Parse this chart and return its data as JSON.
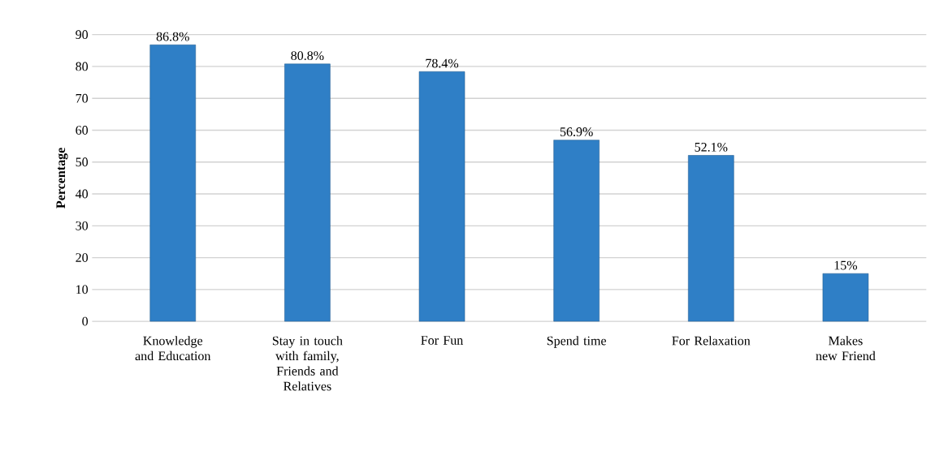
{
  "chart_data": {
    "type": "bar",
    "ylabel": "Percentage",
    "categories": [
      "Knowledge and Education",
      "Stay in touch with family, Friends and Relatives",
      "For Fun",
      "Spend time",
      "For Relaxation",
      "Makes new Friend"
    ],
    "values": [
      86.8,
      80.8,
      78.4,
      56.9,
      52.1,
      15
    ],
    "value_labels": [
      "86.8%",
      "80.8%",
      "78.4%",
      "56.9%",
      "52.1%",
      "15%"
    ],
    "color": "#2f7fc6",
    "ylim": [
      0,
      90
    ],
    "yticks": [
      0,
      10,
      20,
      30,
      40,
      50,
      60,
      70,
      80,
      90
    ],
    "grid": "y"
  }
}
